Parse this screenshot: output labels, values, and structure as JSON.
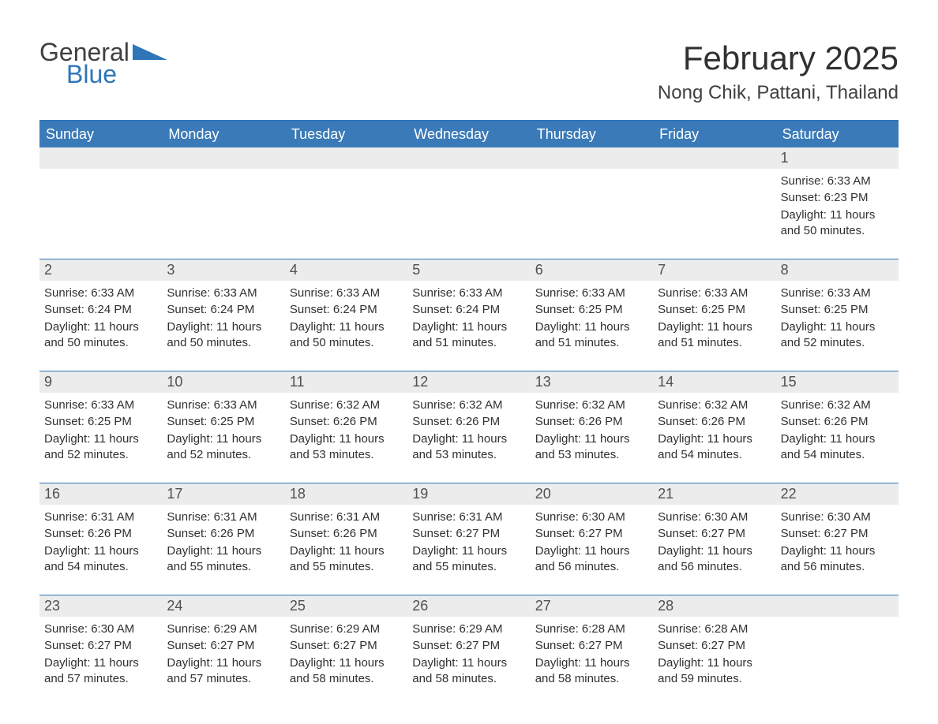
{
  "brand": {
    "general": "General",
    "blue": "Blue",
    "logo_color": "#2f76b8"
  },
  "header": {
    "title": "February 2025",
    "location": "Nong Chik, Pattani, Thailand"
  },
  "colors": {
    "weekday_bg": "#3a7ab8",
    "weekday_fg": "#ffffff",
    "daynum_bg": "#ececec",
    "border": "#2f76b8",
    "text": "#303030",
    "background": "#ffffff"
  },
  "weekdays": [
    "Sunday",
    "Monday",
    "Tuesday",
    "Wednesday",
    "Thursday",
    "Friday",
    "Saturday"
  ],
  "labels": {
    "sunrise": "Sunrise:",
    "sunset": "Sunset:",
    "daylight": "Daylight:"
  },
  "weeks": [
    [
      null,
      null,
      null,
      null,
      null,
      null,
      {
        "n": "1",
        "sunrise": "6:33 AM",
        "sunset": "6:23 PM",
        "daylight": "11 hours and 50 minutes."
      }
    ],
    [
      {
        "n": "2",
        "sunrise": "6:33 AM",
        "sunset": "6:24 PM",
        "daylight": "11 hours and 50 minutes."
      },
      {
        "n": "3",
        "sunrise": "6:33 AM",
        "sunset": "6:24 PM",
        "daylight": "11 hours and 50 minutes."
      },
      {
        "n": "4",
        "sunrise": "6:33 AM",
        "sunset": "6:24 PM",
        "daylight": "11 hours and 50 minutes."
      },
      {
        "n": "5",
        "sunrise": "6:33 AM",
        "sunset": "6:24 PM",
        "daylight": "11 hours and 51 minutes."
      },
      {
        "n": "6",
        "sunrise": "6:33 AM",
        "sunset": "6:25 PM",
        "daylight": "11 hours and 51 minutes."
      },
      {
        "n": "7",
        "sunrise": "6:33 AM",
        "sunset": "6:25 PM",
        "daylight": "11 hours and 51 minutes."
      },
      {
        "n": "8",
        "sunrise": "6:33 AM",
        "sunset": "6:25 PM",
        "daylight": "11 hours and 52 minutes."
      }
    ],
    [
      {
        "n": "9",
        "sunrise": "6:33 AM",
        "sunset": "6:25 PM",
        "daylight": "11 hours and 52 minutes."
      },
      {
        "n": "10",
        "sunrise": "6:33 AM",
        "sunset": "6:25 PM",
        "daylight": "11 hours and 52 minutes."
      },
      {
        "n": "11",
        "sunrise": "6:32 AM",
        "sunset": "6:26 PM",
        "daylight": "11 hours and 53 minutes."
      },
      {
        "n": "12",
        "sunrise": "6:32 AM",
        "sunset": "6:26 PM",
        "daylight": "11 hours and 53 minutes."
      },
      {
        "n": "13",
        "sunrise": "6:32 AM",
        "sunset": "6:26 PM",
        "daylight": "11 hours and 53 minutes."
      },
      {
        "n": "14",
        "sunrise": "6:32 AM",
        "sunset": "6:26 PM",
        "daylight": "11 hours and 54 minutes."
      },
      {
        "n": "15",
        "sunrise": "6:32 AM",
        "sunset": "6:26 PM",
        "daylight": "11 hours and 54 minutes."
      }
    ],
    [
      {
        "n": "16",
        "sunrise": "6:31 AM",
        "sunset": "6:26 PM",
        "daylight": "11 hours and 54 minutes."
      },
      {
        "n": "17",
        "sunrise": "6:31 AM",
        "sunset": "6:26 PM",
        "daylight": "11 hours and 55 minutes."
      },
      {
        "n": "18",
        "sunrise": "6:31 AM",
        "sunset": "6:26 PM",
        "daylight": "11 hours and 55 minutes."
      },
      {
        "n": "19",
        "sunrise": "6:31 AM",
        "sunset": "6:27 PM",
        "daylight": "11 hours and 55 minutes."
      },
      {
        "n": "20",
        "sunrise": "6:30 AM",
        "sunset": "6:27 PM",
        "daylight": "11 hours and 56 minutes."
      },
      {
        "n": "21",
        "sunrise": "6:30 AM",
        "sunset": "6:27 PM",
        "daylight": "11 hours and 56 minutes."
      },
      {
        "n": "22",
        "sunrise": "6:30 AM",
        "sunset": "6:27 PM",
        "daylight": "11 hours and 56 minutes."
      }
    ],
    [
      {
        "n": "23",
        "sunrise": "6:30 AM",
        "sunset": "6:27 PM",
        "daylight": "11 hours and 57 minutes."
      },
      {
        "n": "24",
        "sunrise": "6:29 AM",
        "sunset": "6:27 PM",
        "daylight": "11 hours and 57 minutes."
      },
      {
        "n": "25",
        "sunrise": "6:29 AM",
        "sunset": "6:27 PM",
        "daylight": "11 hours and 58 minutes."
      },
      {
        "n": "26",
        "sunrise": "6:29 AM",
        "sunset": "6:27 PM",
        "daylight": "11 hours and 58 minutes."
      },
      {
        "n": "27",
        "sunrise": "6:28 AM",
        "sunset": "6:27 PM",
        "daylight": "11 hours and 58 minutes."
      },
      {
        "n": "28",
        "sunrise": "6:28 AM",
        "sunset": "6:27 PM",
        "daylight": "11 hours and 59 minutes."
      },
      null
    ]
  ]
}
